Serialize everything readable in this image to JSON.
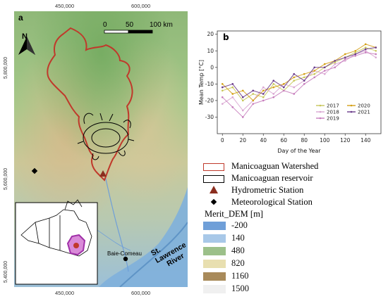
{
  "map": {
    "panel_label": "a",
    "x_ticks": [
      "450,000",
      "600,000"
    ],
    "y_ticks": [
      "5,800,000",
      "5,600,000",
      "5,400,000"
    ],
    "scalebar": {
      "labels": [
        "0",
        "50",
        "100 km"
      ]
    },
    "places": {
      "city": "Baie-Comeau",
      "river_line1": "St. Lawrence",
      "river_line2": "River"
    },
    "colors": {
      "watershed": "#c0392b",
      "reservoir": "#000000",
      "station": "#8b2e1f"
    }
  },
  "legend": {
    "watershed": "Manicoaguan Watershed",
    "reservoir": "Manicoaguan reservoir",
    "hydro": "Hydrometric Station",
    "meteo": "Meteorological Station",
    "dem_title": "Merit_DEM [m]",
    "dem_classes": [
      {
        "label": "-200",
        "color": "#6f9fd8"
      },
      {
        "label": "140",
        "color": "#a8c8e8"
      },
      {
        "label": "480",
        "color": "#9cc08a"
      },
      {
        "label": "820",
        "color": "#e8dfb0"
      },
      {
        "label": "1160",
        "color": "#a88a5a"
      },
      {
        "label": "1500",
        "color": "#f0f0f0"
      }
    ]
  },
  "chart_data": {
    "type": "line",
    "panel_label": "b",
    "xlabel": "Day of the Year",
    "ylabel": "Mean Temp [°C]",
    "xlim": [
      -5,
      155
    ],
    "ylim": [
      -40,
      22
    ],
    "x_ticks": [
      0,
      20,
      40,
      60,
      80,
      100,
      120,
      140
    ],
    "y_ticks": [
      -30,
      -20,
      -10,
      0,
      10,
      20
    ],
    "legend_position": "bottom-right",
    "series": [
      {
        "name": "2017",
        "color": "#c8c65a",
        "x": [
          0,
          10,
          20,
          30,
          40,
          50,
          60,
          70,
          80,
          90,
          100,
          110,
          120,
          130,
          140,
          150
        ],
        "y": [
          -14,
          -12,
          -20,
          -16,
          -18,
          -10,
          -14,
          -8,
          -6,
          -4,
          0,
          3,
          6,
          9,
          12,
          10
        ]
      },
      {
        "name": "2018",
        "color": "#d9a6d2",
        "x": [
          0,
          10,
          20,
          30,
          40,
          50,
          60,
          70,
          80,
          90,
          100,
          110,
          120,
          130,
          140,
          150
        ],
        "y": [
          -22,
          -18,
          -26,
          -20,
          -12,
          -16,
          -10,
          -12,
          -8,
          -2,
          -4,
          2,
          4,
          8,
          10,
          6
        ]
      },
      {
        "name": "2019",
        "color": "#c77dbd",
        "x": [
          0,
          10,
          20,
          30,
          40,
          50,
          60,
          70,
          80,
          90,
          100,
          110,
          120,
          130,
          140,
          150
        ],
        "y": [
          -18,
          -24,
          -30,
          -22,
          -20,
          -18,
          -14,
          -16,
          -10,
          -6,
          -2,
          0,
          5,
          7,
          9,
          8
        ]
      },
      {
        "name": "2020",
        "color": "#d4a017",
        "x": [
          0,
          10,
          20,
          30,
          40,
          50,
          60,
          70,
          80,
          90,
          100,
          110,
          120,
          130,
          140,
          150
        ],
        "y": [
          -10,
          -16,
          -14,
          -20,
          -14,
          -12,
          -10,
          -6,
          -4,
          -2,
          2,
          4,
          8,
          10,
          14,
          12
        ]
      },
      {
        "name": "2021",
        "color": "#6a3a8a",
        "x": [
          0,
          10,
          20,
          30,
          40,
          50,
          60,
          70,
          80,
          90,
          100,
          110,
          120,
          130,
          140,
          150
        ],
        "y": [
          -12,
          -10,
          -18,
          -14,
          -16,
          -8,
          -12,
          -4,
          -8,
          0,
          0,
          4,
          6,
          8,
          11,
          12
        ]
      }
    ]
  }
}
